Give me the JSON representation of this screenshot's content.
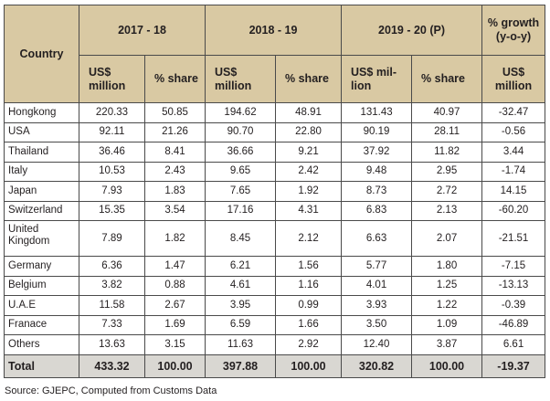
{
  "table": {
    "header": {
      "country": "Country",
      "period_1": "2017 - 18",
      "period_2": "2018 - 19",
      "period_3": "2019 - 20 (P)",
      "growth": "% growth (y-o-y)",
      "usd_million": "US$ million",
      "usd_million_split": "US$ mil-lion",
      "share": "% share"
    },
    "rows": [
      {
        "country": "Hongkong",
        "v1718": "220.33",
        "s1718": "50.85",
        "v1819": "194.62",
        "s1819": "48.91",
        "v1920": "131.43",
        "s1920": "40.97",
        "growth": "-32.47"
      },
      {
        "country": "USA",
        "v1718": "92.11",
        "s1718": "21.26",
        "v1819": "90.70",
        "s1819": "22.80",
        "v1920": "90.19",
        "s1920": "28.11",
        "growth": "-0.56"
      },
      {
        "country": "Thailand",
        "v1718": "36.46",
        "s1718": "8.41",
        "v1819": "36.66",
        "s1819": "9.21",
        "v1920": "37.92",
        "s1920": "11.82",
        "growth": "3.44"
      },
      {
        "country": "Italy",
        "v1718": "10.53",
        "s1718": "2.43",
        "v1819": "9.65",
        "s1819": "2.42",
        "v1920": "9.48",
        "s1920": "2.95",
        "growth": "-1.74"
      },
      {
        "country": "Japan",
        "v1718": "7.93",
        "s1718": "1.83",
        "v1819": "7.65",
        "s1819": "1.92",
        "v1920": "8.73",
        "s1920": "2.72",
        "growth": "14.15"
      },
      {
        "country": "Switzerland",
        "v1718": "15.35",
        "s1718": "3.54",
        "v1819": "17.16",
        "s1819": "4.31",
        "v1920": "6.83",
        "s1920": "2.13",
        "growth": "-60.20"
      },
      {
        "country": "United\nKingdom",
        "v1718": "7.89",
        "s1718": "1.82",
        "v1819": "8.45",
        "s1819": "2.12",
        "v1920": "6.63",
        "s1920": "2.07",
        "growth": "-21.51"
      },
      {
        "country": "Germany",
        "v1718": "6.36",
        "s1718": "1.47",
        "v1819": "6.21",
        "s1819": "1.56",
        "v1920": "5.77",
        "s1920": "1.80",
        "growth": "-7.15"
      },
      {
        "country": "Belgium",
        "v1718": "3.82",
        "s1718": "0.88",
        "v1819": "4.61",
        "s1819": "1.16",
        "v1920": "4.01",
        "s1920": "1.25",
        "growth": "-13.13"
      },
      {
        "country": "U.A.E",
        "v1718": "11.58",
        "s1718": "2.67",
        "v1819": "3.95",
        "s1819": "0.99",
        "v1920": "3.93",
        "s1920": "1.22",
        "growth": "-0.39"
      },
      {
        "country": "Franace",
        "v1718": "7.33",
        "s1718": "1.69",
        "v1819": "6.59",
        "s1819": "1.66",
        "v1920": "3.50",
        "s1920": "1.09",
        "growth": "-46.89"
      },
      {
        "country": "Others",
        "v1718": "13.63",
        "s1718": "3.15",
        "v1819": "11.63",
        "s1819": "2.92",
        "v1920": "12.40",
        "s1920": "3.87",
        "growth": "6.61"
      }
    ],
    "total": {
      "label": "Total",
      "v1718": "433.32",
      "s1718": "100.00",
      "v1819": "397.88",
      "s1819": "100.00",
      "v1920": "320.82",
      "s1920": "100.00",
      "growth": "-19.37"
    }
  },
  "source": "Source: GJEPC, Computed from Customs Data",
  "colors": {
    "header_bg": "#d9c9a3",
    "total_bg": "#d9d7d2",
    "text": "#231f20",
    "border": "#4a4a4a"
  }
}
